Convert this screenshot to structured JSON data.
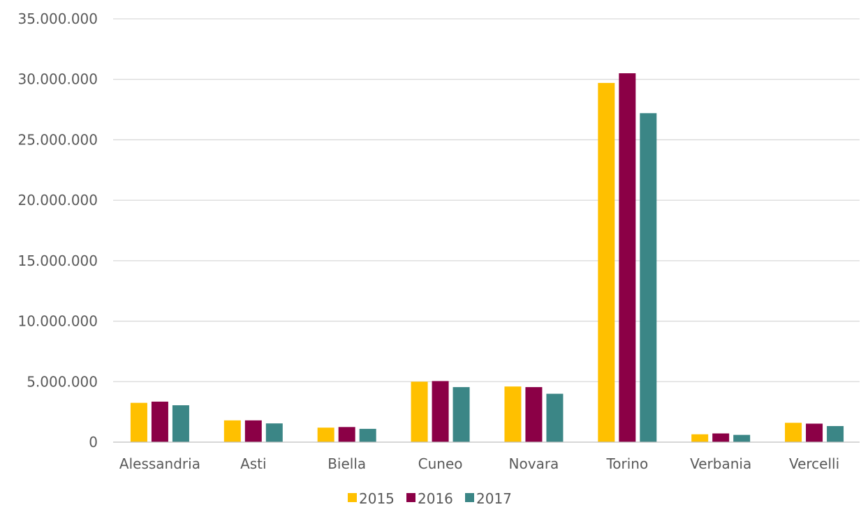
{
  "chart_data": {
    "type": "bar",
    "title": "",
    "xlabel": "",
    "ylabel": "",
    "categories": [
      "Alessandria",
      "Asti",
      "Biella",
      "Cuneo",
      "Novara",
      "Torino",
      "Verbania",
      "Vercelli"
    ],
    "series": [
      {
        "name": "2015",
        "color": "#FFC000",
        "values": [
          3250000,
          1800000,
          1200000,
          5000000,
          4600000,
          29700000,
          650000,
          1600000
        ]
      },
      {
        "name": "2016",
        "color": "#8B0046",
        "values": [
          3350000,
          1800000,
          1250000,
          5050000,
          4550000,
          30500000,
          720000,
          1530000
        ]
      },
      {
        "name": "2017",
        "color": "#3B8686",
        "values": [
          3050000,
          1550000,
          1100000,
          4550000,
          4000000,
          27200000,
          600000,
          1330000
        ]
      }
    ],
    "ylim": [
      0,
      35000000
    ],
    "yticks": [
      0,
      5000000,
      10000000,
      15000000,
      20000000,
      25000000,
      30000000,
      35000000
    ],
    "ytick_labels": [
      "0",
      "5.000.000",
      "10.000.000",
      "15.000.000",
      "20.000.000",
      "25.000.000",
      "30.000.000",
      "35.000.000"
    ],
    "grid": true,
    "legend_position": "bottom"
  }
}
